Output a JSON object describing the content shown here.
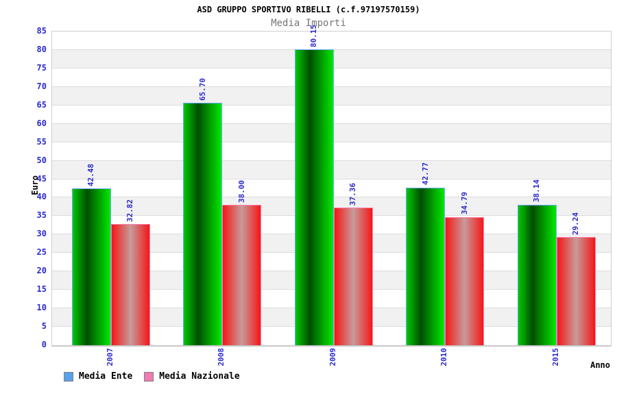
{
  "chart_data": {
    "type": "bar",
    "title": "ASD GRUPPO SPORTIVO RIBELLI (c.f.97197570159)",
    "subtitle": "Media Importi",
    "xlabel": "Anno",
    "ylabel": "Euro",
    "categories": [
      "2007",
      "2008",
      "2009",
      "2010",
      "2015"
    ],
    "series": [
      {
        "name": "Media Ente",
        "values": [
          42.48,
          65.7,
          80.15,
          42.77,
          38.14
        ],
        "value_labels": [
          "42.48",
          "65.70",
          "80.15",
          "42.77",
          "38.14"
        ],
        "legend_color": "#59a2e9",
        "bar_border_color": "#6fa9ff",
        "bar_gradient": {
          "from": "#00c800",
          "mid": "#004e00",
          "to": "#00e900",
          "mid_pos": "38%"
        }
      },
      {
        "name": "Media Nazionale",
        "values": [
          32.82,
          38.0,
          37.36,
          34.79,
          29.24
        ],
        "value_labels": [
          "32.82",
          "38.00",
          "37.36",
          "34.79",
          "29.24"
        ],
        "legend_color": "#ee7cb2",
        "bar_border_color": "#ff7fae",
        "bar_gradient": {
          "from": "#f51616",
          "mid": "#c79b9b",
          "to": "#f51616",
          "mid_pos": "50%"
        }
      }
    ],
    "ylim": [
      0,
      85
    ],
    "ytick_step": 5,
    "grid": "horizontal",
    "legend_position": "bottom-left"
  },
  "colors": {
    "axis_text": "#2a2ace",
    "title_text": "#000000",
    "subtitle_text": "#757575",
    "band": "#f1f1f1",
    "grid_line": "#dcdcdc",
    "plot_border": "#cfcfcf",
    "background": "#ffffff",
    "legend_swatch_border": "#808080"
  }
}
